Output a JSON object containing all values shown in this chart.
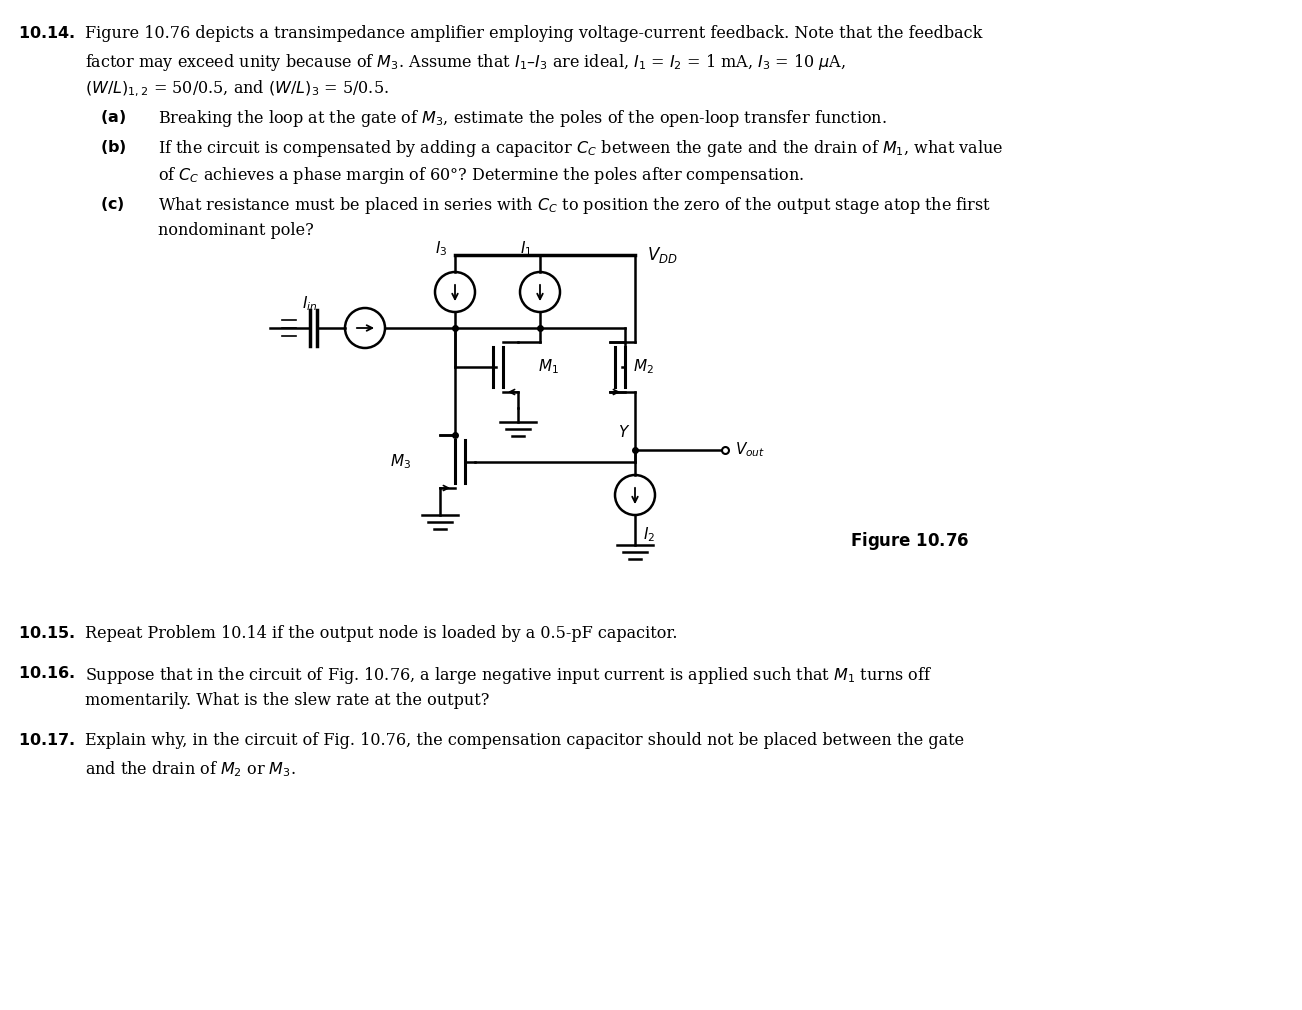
{
  "title_text": "10.14.",
  "problem_text_line1": "Figure 10.76 depicts a transimpedance amplifier employing voltage-current feedback. Note that the feedback",
  "problem_text_line2": "factor may exceed unity because of $M_3$. Assume that $I_1$–$I_3$ are ideal, $I_1$ = $I_2$ = 1 mA, $I_3$ = 10 μA,",
  "problem_text_line3": "$(W/L)_{1,2}$ = 50/0.5, and $(W/L)_3$ = 5/0.5.",
  "sub_a": "(a)   Breaking the loop at the gate of $M_3$, estimate the poles of the open-loop transfer function.",
  "sub_b_line1": "(b)   If the circuit is compensated by adding a capacitor $C_C$ between the gate and the drain of $M_1$, what value",
  "sub_b_line2": "        of $C_C$ achieves a phase margin of 60°? Determine the poles after compensation.",
  "sub_c_line1": "(c)   What resistance must be placed in series with $C_C$ to position the zero of the output stage atop the first",
  "sub_c_line2": "        nondominant pole?",
  "fig_label": "Figure 10.76",
  "prob_1015": "10.15.",
  "text_1015": "Repeat Problem 10.14 if the output node is loaded by a 0.5-pF capacitor.",
  "prob_1016": "10.16.",
  "text_1016_line1": "Suppose that in the circuit of Fig. 10.76, a large negative input current is applied such that $M_1$ turns off",
  "text_1016_line2": "momentarily. What is the slew rate at the output?",
  "prob_1017": "10.17.",
  "text_1017_line1": "Explain why, in the circuit of Fig. 10.76, the compensation capacitor should not be placed between the gate",
  "text_1017_line2": "and the drain of $M_2$ or $M_3$.",
  "bg_color": "#ffffff",
  "text_color": "#000000"
}
